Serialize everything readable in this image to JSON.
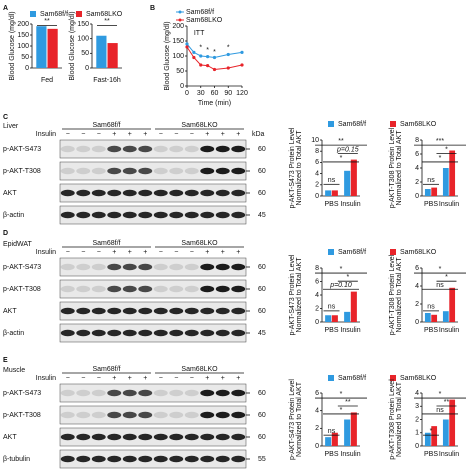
{
  "panels": [
    "A",
    "B",
    "C",
    "D",
    "E"
  ],
  "chart_data": [
    {
      "type": "bar",
      "categories": [
        "Fed"
      ],
      "ylabel": "Blood Glucose (mg/dl)",
      "ylim": [
        0,
        200
      ],
      "yticks": [
        0,
        50,
        100,
        150,
        200
      ],
      "series": [
        {
          "name": "Sam68f/f",
          "color": "#2f9ae0",
          "values": [
            190
          ]
        },
        {
          "name": "Sam68LKO",
          "color": "#e8242a",
          "values": [
            178
          ]
        }
      ],
      "annotations": [
        "**"
      ]
    },
    {
      "type": "bar",
      "categories": [
        "Fast-16h"
      ],
      "ylabel": "Blood Glucose (mg/dl)",
      "ylim": [
        0,
        150
      ],
      "yticks": [
        0,
        50,
        100,
        150
      ],
      "series": [
        {
          "color": "#2f9ae0",
          "values": [
            110
          ]
        },
        {
          "color": "#e8242a",
          "values": [
            85
          ]
        }
      ],
      "annotations": [
        "**"
      ]
    },
    {
      "type": "line",
      "x": [
        0,
        15,
        30,
        45,
        60,
        90,
        120
      ],
      "xlim": [
        0,
        120
      ],
      "xticks": [
        0,
        30,
        60,
        90,
        120
      ],
      "xlabel": "Time (min)",
      "ylabel": "Blood Glucose (mg/dl)",
      "ylim": [
        0,
        200
      ],
      "yticks": [
        0,
        50,
        100,
        150,
        200
      ],
      "series": [
        {
          "name": "Sam68f/f",
          "color": "#2f9ae0",
          "values": [
            140,
            112,
            100,
            98,
            95,
            105,
            112
          ]
        },
        {
          "name": "Sam68LKO",
          "color": "#e8242a",
          "values": [
            130,
            95,
            70,
            68,
            55,
            60,
            70
          ]
        }
      ],
      "annotations": [
        "ITT",
        "*",
        "*",
        "*",
        "*"
      ]
    },
    {
      "type": "bar",
      "categories": [
        "PBS",
        "Insulin"
      ],
      "ylabel": [
        "p-AKT-S473 Protein Level",
        "Normalized to Total AKT"
      ],
      "ylim": [
        0,
        10
      ],
      "yticks": [
        0,
        2,
        4,
        6,
        8,
        10
      ],
      "series": [
        {
          "name": "Sam68f/f",
          "color": "#2f9ae0",
          "values": [
            1,
            4.5
          ]
        },
        {
          "name": "Sam68LKO",
          "color": "#e8242a",
          "values": [
            1,
            6.5
          ]
        }
      ],
      "annotations": [
        "ns",
        "*",
        "p=0.15",
        "**"
      ]
    },
    {
      "type": "bar",
      "categories": [
        "PBS",
        "Insulin"
      ],
      "ylabel": [
        "p-AKT-T308 Protein Level",
        "Normalized to Total AKT"
      ],
      "ylim": [
        0,
        8
      ],
      "yticks": [
        0,
        2,
        4,
        6,
        8
      ],
      "series": [
        {
          "color": "#2f9ae0",
          "values": [
            1,
            4
          ]
        },
        {
          "color": "#e8242a",
          "values": [
            1.2,
            6.5
          ]
        }
      ],
      "annotations": [
        "ns",
        "*",
        "*",
        "***"
      ]
    },
    {
      "type": "bar",
      "categories": [
        "PBS",
        "Insulin"
      ],
      "ylabel": [
        "p-AKT-S473 Protein Level",
        "Normalized to Total AKT"
      ],
      "ylim": [
        0,
        8
      ],
      "yticks": [
        0,
        2,
        4,
        6,
        8
      ],
      "series": [
        {
          "name": "Sam68f/f",
          "color": "#2f9ae0",
          "values": [
            1,
            1.5
          ]
        },
        {
          "name": "Sam68LKO",
          "color": "#e8242a",
          "values": [
            1,
            4.5
          ]
        }
      ],
      "annotations": [
        "ns",
        "p=0.10",
        "*",
        "*"
      ]
    },
    {
      "type": "bar",
      "categories": [
        "PBS",
        "Insulin"
      ],
      "ylabel": [
        "p-AKT-T308 Protein Level",
        "Normalized to Total AKT"
      ],
      "ylim": [
        0,
        6
      ],
      "yticks": [
        0,
        2,
        4,
        6
      ],
      "series": [
        {
          "color": "#2f9ae0",
          "values": [
            1,
            1.2
          ]
        },
        {
          "color": "#e8242a",
          "values": [
            0.8,
            3.8
          ]
        }
      ],
      "annotations": [
        "ns",
        "ns",
        "*",
        "*"
      ]
    },
    {
      "type": "bar",
      "categories": [
        "PBS",
        "Insulin"
      ],
      "ylabel": [
        "p-AKT-S473 Protein Level",
        "Normalized to Total AKT"
      ],
      "ylim": [
        0,
        6
      ],
      "yticks": [
        0,
        2,
        4,
        6
      ],
      "series": [
        {
          "name": "Sam68f/f",
          "color": "#2f9ae0",
          "values": [
            1,
            3
          ]
        },
        {
          "name": "Sam68LKO",
          "color": "#e8242a",
          "values": [
            1.5,
            3.8
          ]
        }
      ],
      "annotations": [
        "ns",
        "*",
        "**",
        "*"
      ]
    },
    {
      "type": "bar",
      "categories": [
        "PBS",
        "Insulin"
      ],
      "ylabel": [
        "p-AKT-T308 Protein Level",
        "Normalized to Total AKT"
      ],
      "ylim": [
        0,
        4
      ],
      "yticks": [
        0,
        1,
        2,
        3,
        4
      ],
      "series": [
        {
          "color": "#2f9ae0",
          "values": [
            1,
            2
          ]
        },
        {
          "color": "#e8242a",
          "values": [
            1.5,
            3.5
          ]
        }
      ],
      "annotations": [
        "*",
        "ns",
        "**",
        "*"
      ]
    }
  ],
  "blots": [
    {
      "tissue": "Liver",
      "groups": [
        "Sam68f/f",
        "Sam68LKO"
      ],
      "treatment": "Insulin",
      "signs": [
        "−",
        "−",
        "−",
        "+",
        "+",
        "+",
        "−",
        "−",
        "−",
        "+",
        "+",
        "+"
      ],
      "unit": "kDa",
      "rows": [
        {
          "label": "p-AKT-S473",
          "kda": "60"
        },
        {
          "label": "p-AKT-T308",
          "kda": "60"
        },
        {
          "label": "AKT",
          "kda": "60"
        },
        {
          "label": "β-actin",
          "kda": "45"
        }
      ]
    },
    {
      "tissue": "EpidWAT",
      "groups": [
        "Sam68f/f",
        "Sam68LKO"
      ],
      "treatment": "Insulin",
      "signs": [
        "−",
        "−",
        "−",
        "+",
        "+",
        "+",
        "−",
        "−",
        "−",
        "+",
        "+",
        "+"
      ],
      "rows": [
        {
          "label": "p-AKT-S473",
          "kda": "60"
        },
        {
          "label": "p-AKT-T308",
          "kda": "60"
        },
        {
          "label": "AKT",
          "kda": "60"
        },
        {
          "label": "β-actin",
          "kda": "45"
        }
      ]
    },
    {
      "tissue": "Muscle",
      "groups": [
        "Sam68f/f",
        "Sam68LKO"
      ],
      "treatment": "Insulin",
      "signs": [
        "−",
        "−",
        "−",
        "+",
        "+",
        "+",
        "−",
        "−",
        "−",
        "+",
        "+",
        "+"
      ],
      "rows": [
        {
          "label": "p-AKT-S473",
          "kda": "60"
        },
        {
          "label": "p-AKT-T308",
          "kda": "60"
        },
        {
          "label": "AKT",
          "kda": "60"
        },
        {
          "label": "β-tubulin",
          "kda": "55"
        }
      ]
    }
  ]
}
